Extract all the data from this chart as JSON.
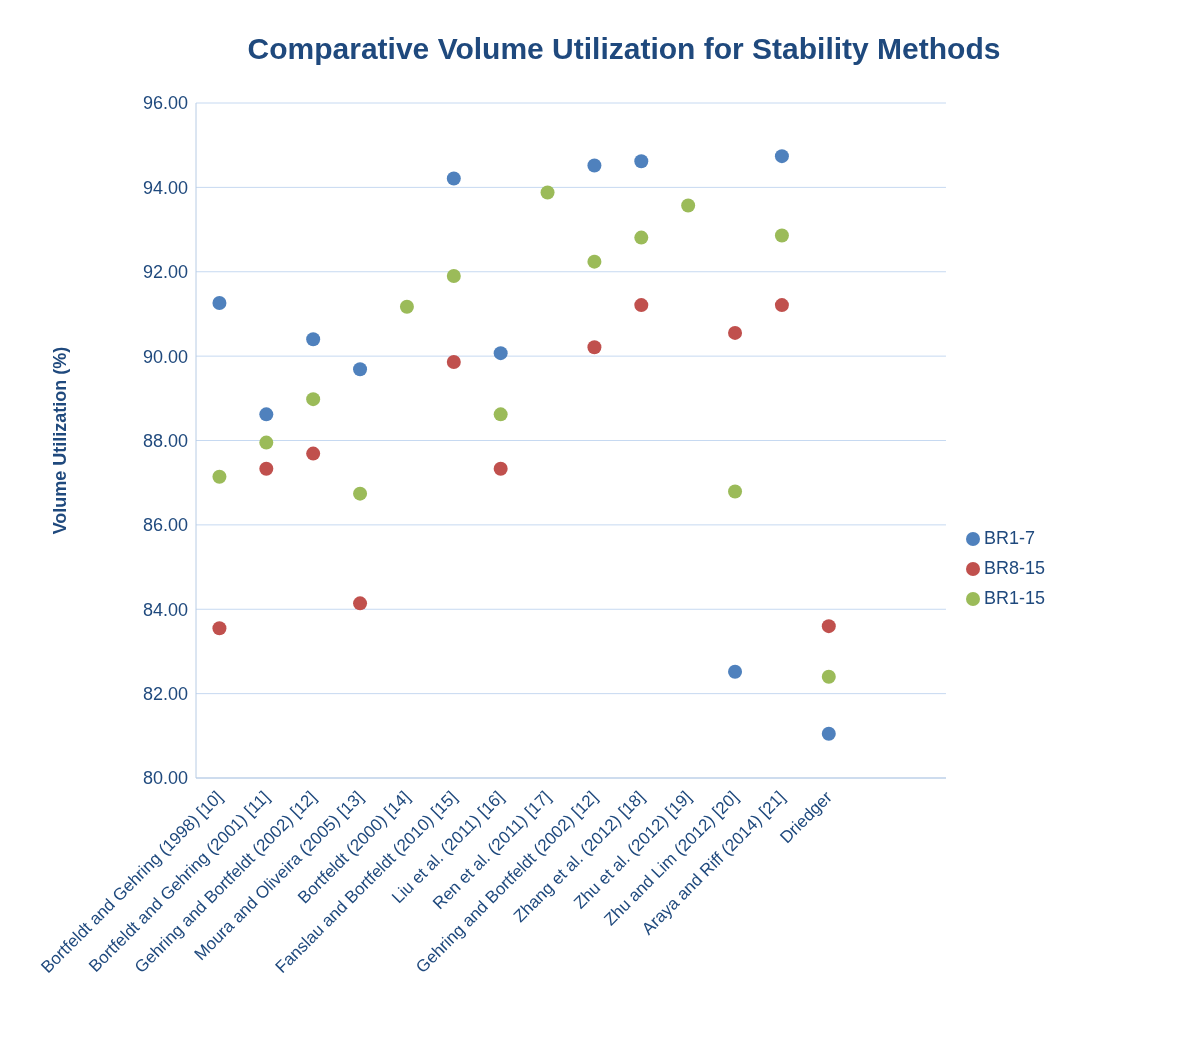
{
  "chart_data": {
    "type": "scatter",
    "title": "Comparative Volume Utilization for Stability Methods",
    "ylabel": "Volume Utilization (%)",
    "categories": [
      "Bortfeldt and Gehring (1998) [10]",
      "Bortfeldt and Gehring (2001)  [11]",
      "Gehring and Bortfeldt (2002)  [12]",
      "Moura and Oliveira (2005) [13]",
      "Bortfeldt (2000) [14]",
      "Fanslau and Bortfeldt (2010) [15]",
      "Liu et al. (2011) [16]",
      "Ren et al. (2011) [17]",
      "Gehring and Bortfeldt (2002) [12]",
      "Zhang et al. (2012) [18]",
      "Zhu et al. (2012) [19]",
      "Zhu and Lim (2012) [20]",
      "Araya and Riff (2014) [21]",
      "Driedger",
      null,
      null
    ],
    "series": [
      {
        "name": "BR1-7",
        "color": "#4f81bd",
        "values": [
          91.26,
          88.62,
          90.4,
          89.69,
          null,
          94.21,
          90.07,
          null,
          94.52,
          94.62,
          null,
          82.52,
          94.74,
          81.05,
          null,
          null
        ]
      },
      {
        "name": "BR8-15",
        "color": "#c0504d",
        "values": [
          83.55,
          87.33,
          87.69,
          84.14,
          null,
          89.86,
          87.33,
          null,
          90.21,
          91.21,
          null,
          90.55,
          91.21,
          83.6,
          null,
          null
        ]
      },
      {
        "name": "BR1-15",
        "color": "#9bbb59",
        "values": [
          87.14,
          87.95,
          88.98,
          86.74,
          91.17,
          91.9,
          88.62,
          93.88,
          92.24,
          92.81,
          93.57,
          86.79,
          92.86,
          82.4,
          null,
          null
        ]
      }
    ],
    "ylim": [
      80,
      96
    ],
    "yticks": [
      {
        "value": 80,
        "label": "80.00"
      },
      {
        "value": 82,
        "label": "82.00"
      },
      {
        "value": 84,
        "label": "84.00"
      },
      {
        "value": 86,
        "label": "86.00"
      },
      {
        "value": 88,
        "label": "88.00"
      },
      {
        "value": 90,
        "label": "90.00"
      },
      {
        "value": 92,
        "label": "92.00"
      },
      {
        "value": 94,
        "label": "94.00"
      },
      {
        "value": 96,
        "label": "96.00"
      }
    ],
    "grid": "y",
    "legend": "right",
    "marker": "circle"
  }
}
